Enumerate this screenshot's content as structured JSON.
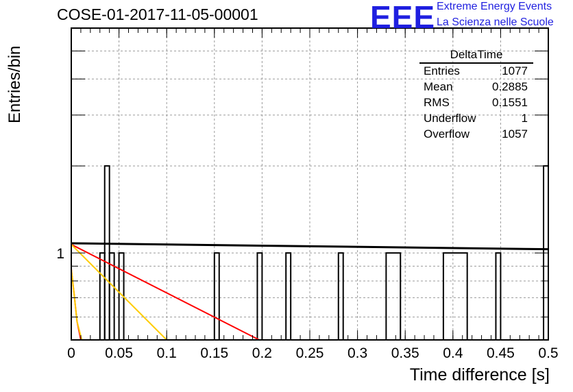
{
  "title": "COSE-01-2017-11-05-00001",
  "logo": {
    "mark": "EEE",
    "line1": "Extreme Energy Events",
    "line2": "La Scienza nelle Scuole",
    "color": "#1f1fe0"
  },
  "stats": {
    "name": "DeltaTime",
    "rows": [
      {
        "label": "Entries",
        "value": "1077"
      },
      {
        "label": "Mean",
        "value": "0.2885"
      },
      {
        "label": "RMS",
        "value": "0.1551"
      },
      {
        "label": "Underflow",
        "value": "1"
      },
      {
        "label": "Overflow",
        "value": "1057"
      }
    ]
  },
  "chart_data": {
    "type": "bar",
    "xlabel": "Time difference [s]",
    "ylabel": "Entries/bin",
    "xlim": [
      0,
      0.5
    ],
    "x_ticks": [
      "0",
      "0.05",
      "0.1",
      "0.15",
      "0.2",
      "0.25",
      "0.3",
      "0.35",
      "0.4",
      "0.45",
      "0.5"
    ],
    "y_scale": "log",
    "ylim": [
      0.5,
      6
    ],
    "y_ticks": [
      "1"
    ],
    "grid": true,
    "bins": [
      {
        "x0": 0.03,
        "x1": 0.035,
        "count": 1
      },
      {
        "x0": 0.035,
        "x1": 0.04,
        "count": 2
      },
      {
        "x0": 0.04,
        "x1": 0.045,
        "count": 1
      },
      {
        "x0": 0.05,
        "x1": 0.055,
        "count": 1
      },
      {
        "x0": 0.15,
        "x1": 0.155,
        "count": 1
      },
      {
        "x0": 0.195,
        "x1": 0.2,
        "count": 1
      },
      {
        "x0": 0.225,
        "x1": 0.23,
        "count": 1
      },
      {
        "x0": 0.28,
        "x1": 0.285,
        "count": 1
      },
      {
        "x0": 0.33,
        "x1": 0.345,
        "count": 1
      },
      {
        "x0": 0.39,
        "x1": 0.415,
        "count": 1
      },
      {
        "x0": 0.445,
        "x1": 0.45,
        "count": 1
      },
      {
        "x0": 0.495,
        "x1": 0.5,
        "count": 2
      }
    ],
    "fits": [
      {
        "color": "#000000",
        "x": [
          0.0,
          0.5
        ],
        "y": [
          1.08,
          1.03
        ]
      },
      {
        "color": "#ff0000",
        "x": [
          0.0,
          0.197
        ],
        "y": [
          1.07,
          0.5
        ]
      },
      {
        "color": "#ffcc00",
        "x": [
          0.0,
          0.1
        ],
        "y": [
          1.07,
          0.5
        ]
      },
      {
        "color": "#ff0000",
        "x": [
          0.0,
          0.003,
          0.006,
          0.01
        ],
        "y": [
          0.88,
          0.72,
          0.58,
          0.5
        ]
      },
      {
        "color": "#ffcc00",
        "x": [
          0.0,
          0.003,
          0.006,
          0.011
        ],
        "y": [
          0.88,
          0.72,
          0.58,
          0.5
        ]
      }
    ]
  }
}
